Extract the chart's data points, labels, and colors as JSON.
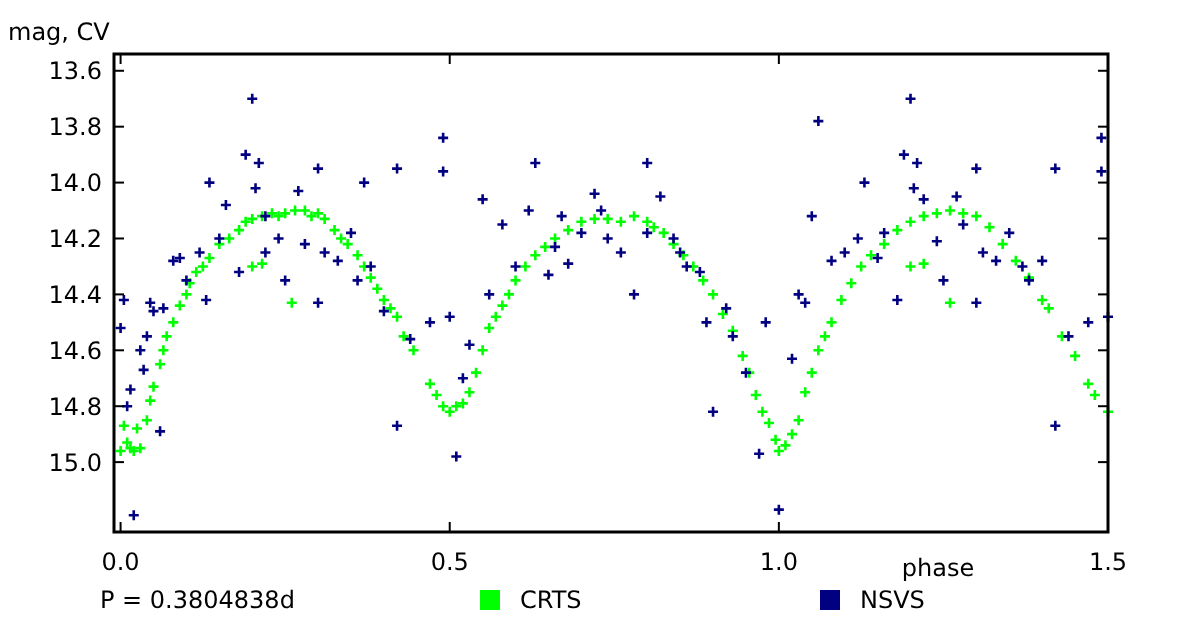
{
  "chart_data": {
    "type": "scatter",
    "ylabel": "mag, CV",
    "xlabel": "phase",
    "xlim": [
      -0.01,
      1.5
    ],
    "ylim": [
      15.25,
      13.54
    ],
    "xticks": [
      {
        "value": 0,
        "label": "0.0"
      },
      0.5,
      {
        "value": 1,
        "label": "1.0"
      },
      1.5
    ],
    "yticks": [
      13.6,
      13.8,
      {
        "value": 14,
        "label": "14.0"
      },
      14.2,
      14.4,
      14.6,
      14.8,
      {
        "value": 15,
        "label": "15.0"
      }
    ],
    "marker": "cross",
    "legend": "bottom",
    "grid": false,
    "annotations": [
      "P = 0.3804838d"
    ],
    "series": [
      {
        "name": "CRTS",
        "color": "#00ff00",
        "x": [
          0,
          0.005,
          0.01,
          0.015,
          0.02,
          0.025,
          0.03,
          0.04,
          0.045,
          0.05,
          0.06,
          0.065,
          0.07,
          0.08,
          0.09,
          0.1,
          0.105,
          0.115,
          0.125,
          0.135,
          0.15,
          0.165,
          0.18,
          0.19,
          0.2,
          0.215,
          0.23,
          0.24,
          0.25,
          0.265,
          0.28,
          0.29,
          0.3,
          0.31,
          0.325,
          0.335,
          0.345,
          0.36,
          0.37,
          0.38,
          0.39,
          0.4,
          0.41,
          0.42,
          0.43,
          0.445,
          0.47,
          0.48,
          0.49,
          0.5,
          0.51,
          0.52,
          0.53,
          0.54,
          0.55,
          0.56,
          0.57,
          0.58,
          0.59,
          0.6,
          0.615,
          0.63,
          0.645,
          0.66,
          0.68,
          0.7,
          0.72,
          0.74,
          0.76,
          0.78,
          0.8,
          0.81,
          0.825,
          0.84,
          0.855,
          0.87,
          0.885,
          0.9,
          0.915,
          0.93,
          0.945,
          0.955,
          0.965,
          0.975,
          0.985,
          0.995,
          1,
          1.01,
          1.02,
          1.03,
          1.04,
          1.05,
          1.06,
          1.07,
          1.08,
          1.095,
          1.11,
          1.125,
          1.14,
          1.16,
          1.18,
          1.2,
          1.22,
          1.24,
          1.26,
          1.28,
          1.3,
          1.32,
          1.34,
          1.36,
          1.38,
          1.4,
          1.41,
          1.43,
          1.45,
          1.47,
          1.48,
          1.5,
          0.2,
          0.215,
          0.26,
          1.2,
          1.22,
          1.26
        ],
        "values": [
          14.96,
          14.87,
          14.93,
          14.95,
          14.96,
          14.88,
          14.95,
          14.85,
          14.78,
          14.73,
          14.65,
          14.6,
          14.55,
          14.5,
          14.44,
          14.4,
          14.36,
          14.32,
          14.3,
          14.27,
          14.22,
          14.2,
          14.17,
          14.14,
          14.13,
          14.12,
          14.11,
          14.12,
          14.11,
          14.1,
          14.1,
          14.12,
          14.11,
          14.13,
          14.17,
          14.2,
          14.22,
          14.26,
          14.3,
          14.34,
          14.38,
          14.42,
          14.45,
          14.48,
          14.55,
          14.6,
          14.72,
          14.76,
          14.8,
          14.82,
          14.8,
          14.79,
          14.75,
          14.68,
          14.6,
          14.52,
          14.48,
          14.44,
          14.4,
          14.35,
          14.3,
          14.26,
          14.23,
          14.2,
          14.17,
          14.14,
          14.13,
          14.13,
          14.14,
          14.12,
          14.14,
          14.16,
          14.18,
          14.22,
          14.26,
          14.3,
          14.35,
          14.4,
          14.47,
          14.53,
          14.62,
          14.68,
          14.76,
          14.82,
          14.86,
          14.92,
          14.96,
          14.94,
          14.9,
          14.85,
          14.75,
          14.68,
          14.6,
          14.55,
          14.5,
          14.42,
          14.36,
          14.3,
          14.26,
          14.22,
          14.17,
          14.14,
          14.12,
          14.11,
          14.1,
          14.11,
          14.12,
          14.16,
          14.22,
          14.28,
          14.34,
          14.42,
          14.45,
          14.55,
          14.62,
          14.72,
          14.76,
          14.82,
          14.3,
          14.29,
          14.43,
          14.3,
          14.29,
          14.43
        ]
      },
      {
        "name": "NSVS",
        "color": "#000080",
        "x": [
          0,
          0.005,
          0.01,
          0.015,
          0.02,
          0.03,
          0.035,
          0.04,
          0.045,
          0.05,
          0.06,
          0.065,
          0.08,
          0.09,
          0.1,
          0.12,
          0.13,
          0.135,
          0.15,
          0.16,
          0.18,
          0.19,
          0.2,
          0.205,
          0.21,
          0.22,
          0.22,
          0.24,
          0.25,
          0.27,
          0.28,
          0.3,
          0.3,
          0.31,
          0.33,
          0.35,
          0.36,
          0.37,
          0.38,
          0.4,
          0.42,
          0.42,
          0.44,
          0.47,
          0.49,
          0.49,
          0.5,
          0.51,
          0.52,
          0.53,
          0.55,
          0.56,
          0.58,
          0.6,
          0.62,
          0.63,
          0.65,
          0.66,
          0.67,
          0.68,
          0.7,
          0.72,
          0.73,
          0.74,
          0.76,
          0.78,
          0.8,
          0.8,
          0.82,
          0.84,
          0.85,
          0.86,
          0.88,
          0.89,
          0.9,
          0.92,
          0.93,
          0.95,
          0.97,
          0.98,
          1,
          1.02,
          1.03,
          1.04,
          1.05,
          1.06,
          1.08,
          1.1,
          1.12,
          1.13,
          1.15,
          1.16,
          1.18,
          1.19,
          1.2,
          1.205,
          1.21,
          1.22,
          1.24,
          1.25,
          1.27,
          1.28,
          1.3,
          1.3,
          1.31,
          1.33,
          1.35,
          1.37,
          1.38,
          1.4,
          1.42,
          1.42,
          1.44,
          1.47,
          1.49,
          1.49,
          1.5
        ],
        "values": [
          14.52,
          14.42,
          14.8,
          14.74,
          15.19,
          14.6,
          14.67,
          14.55,
          14.43,
          14.46,
          14.89,
          14.45,
          14.28,
          14.27,
          14.35,
          14.25,
          14.42,
          14.0,
          14.2,
          14.08,
          14.32,
          13.9,
          13.7,
          14.02,
          13.93,
          14.12,
          14.25,
          14.2,
          14.35,
          14.03,
          14.22,
          13.95,
          14.43,
          14.25,
          14.28,
          14.18,
          14.35,
          14.0,
          14.3,
          14.46,
          14.87,
          13.95,
          14.56,
          14.5,
          13.84,
          13.96,
          14.48,
          14.98,
          14.7,
          14.58,
          14.06,
          14.4,
          14.15,
          14.3,
          14.1,
          13.93,
          14.33,
          14.23,
          14.12,
          14.29,
          14.18,
          14.04,
          14.1,
          14.2,
          14.25,
          14.4,
          13.93,
          14.18,
          14.05,
          14.2,
          14.25,
          14.3,
          14.32,
          14.5,
          14.82,
          14.45,
          14.55,
          14.68,
          14.97,
          14.5,
          15.17,
          14.63,
          14.4,
          14.43,
          14.12,
          13.78,
          14.28,
          14.25,
          14.2,
          14.0,
          14.27,
          14.18,
          14.42,
          13.9,
          13.7,
          14.02,
          13.93,
          14.06,
          14.21,
          14.35,
          14.05,
          14.15,
          13.95,
          14.43,
          14.25,
          14.28,
          14.18,
          14.3,
          14.35,
          14.28,
          14.87,
          13.95,
          14.55,
          14.5,
          13.84,
          13.96,
          14.48
        ]
      }
    ]
  }
}
